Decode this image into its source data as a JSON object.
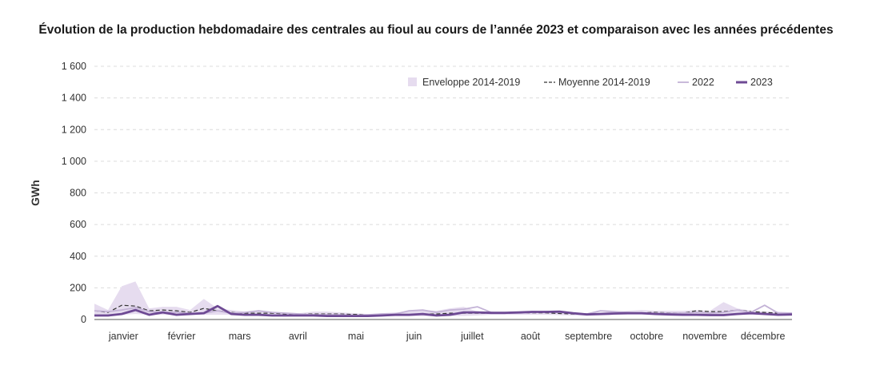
{
  "chart_data": {
    "type": "line",
    "title": "Évolution de la production hebdomadaire des centrales au fioul au cours de l’année 2023 et comparaison avec les années précédentes",
    "ylabel": "GWh",
    "xlabel": "",
    "ylim": [
      0,
      1600
    ],
    "yticks": [
      0,
      200,
      400,
      600,
      800,
      1000,
      1200,
      1400,
      1600
    ],
    "ytick_labels": [
      "0",
      "200",
      "400",
      "600",
      "800",
      "1 000",
      "1 200",
      "1 400",
      "1 600"
    ],
    "x_tick_labels": [
      "janvier",
      "février",
      "mars",
      "avril",
      "mai",
      "juin",
      "juillet",
      "août",
      "septembre",
      "octobre",
      "novembre",
      "décembre"
    ],
    "weeks": [
      1,
      2,
      3,
      4,
      5,
      6,
      7,
      8,
      9,
      10,
      11,
      12,
      13,
      14,
      15,
      16,
      17,
      18,
      19,
      20,
      21,
      22,
      23,
      24,
      25,
      26,
      27,
      28,
      29,
      30,
      31,
      32,
      33,
      34,
      35,
      36,
      37,
      38,
      39,
      40,
      41,
      42,
      43,
      44,
      45,
      46,
      47,
      48,
      49,
      50,
      51,
      52
    ],
    "grid": "horizontal dashed",
    "legend_position": "top-right",
    "envelope": {
      "name": "Enveloppe 2014-2019",
      "color": "#e6dcef",
      "min": [
        30,
        25,
        30,
        35,
        30,
        30,
        30,
        30,
        30,
        30,
        30,
        25,
        25,
        25,
        25,
        22,
        22,
        22,
        22,
        20,
        20,
        20,
        20,
        20,
        20,
        22,
        22,
        22,
        25,
        30,
        30,
        30,
        30,
        30,
        28,
        25,
        25,
        25,
        28,
        30,
        30,
        30,
        30,
        30,
        30,
        30,
        30,
        30,
        30,
        30,
        28,
        28
      ],
      "max": [
        100,
        60,
        210,
        240,
        70,
        80,
        80,
        60,
        130,
        70,
        60,
        50,
        55,
        45,
        45,
        40,
        50,
        50,
        45,
        40,
        35,
        40,
        45,
        50,
        60,
        55,
        70,
        80,
        50,
        45,
        40,
        45,
        55,
        50,
        45,
        40,
        40,
        45,
        50,
        55,
        60,
        55,
        55,
        55,
        60,
        55,
        110,
        70,
        55,
        50,
        50,
        45
      ]
    },
    "series": [
      {
        "name": "Moyenne 2014-2019",
        "color": "#333333",
        "style": "dashed",
        "values": [
          55,
          45,
          90,
          85,
          55,
          60,
          55,
          45,
          70,
          55,
          45,
          40,
          40,
          40,
          35,
          35,
          35,
          35,
          35,
          32,
          30,
          30,
          30,
          32,
          35,
          35,
          40,
          40,
          40,
          40,
          40,
          40,
          42,
          42,
          38,
          35,
          35,
          35,
          38,
          40,
          42,
          45,
          42,
          40,
          55,
          50,
          50,
          60,
          50,
          45,
          40,
          40
        ]
      },
      {
        "name": "2022",
        "color": "#c3b2d6",
        "style": "solid",
        "values": [
          55,
          50,
          60,
          75,
          50,
          45,
          45,
          40,
          40,
          55,
          40,
          45,
          55,
          45,
          40,
          35,
          30,
          30,
          30,
          25,
          30,
          35,
          35,
          55,
          60,
          45,
          60,
          65,
          80,
          45,
          40,
          40,
          45,
          50,
          45,
          40,
          35,
          55,
          50,
          45,
          40,
          40,
          40,
          40,
          45,
          40,
          45,
          60,
          45,
          90,
          40,
          40
        ]
      },
      {
        "name": "2023",
        "color": "#6e4a94",
        "style": "solid-bold",
        "values": [
          25,
          25,
          35,
          60,
          30,
          45,
          30,
          35,
          40,
          85,
          35,
          30,
          30,
          25,
          25,
          25,
          25,
          22,
          22,
          22,
          22,
          25,
          30,
          30,
          35,
          25,
          30,
          45,
          45,
          42,
          42,
          45,
          48,
          48,
          50,
          40,
          32,
          35,
          38,
          40,
          40,
          35,
          32,
          30,
          30,
          28,
          28,
          35,
          40,
          35,
          30,
          32
        ]
      }
    ]
  }
}
